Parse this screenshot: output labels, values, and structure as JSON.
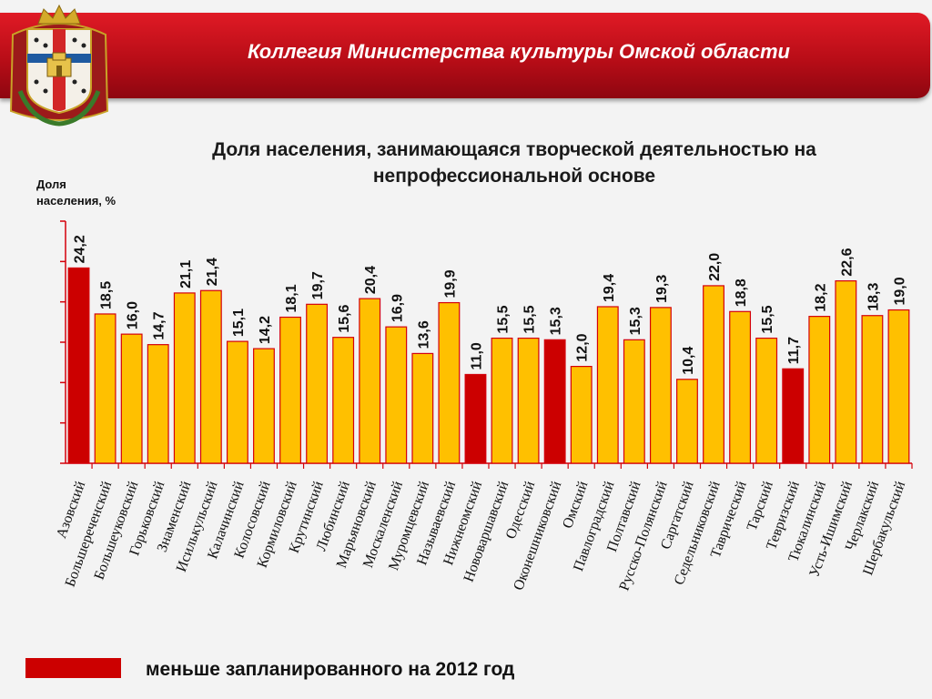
{
  "header": {
    "title": "Коллегия Министерства культуры Омской области"
  },
  "emblem": {
    "icon": "omsk-region-coat-of-arms-icon"
  },
  "colors": {
    "header_red": "#c8101b",
    "bar_normal": "#ffc000",
    "bar_normal_border": "#d4000a",
    "bar_below_plan": "#cc0000",
    "axis": "#d4000a"
  },
  "chart_data": {
    "type": "bar",
    "title": "Доля населения, занимающаяся творческой деятельностью на непрофессиональной основе",
    "title_lines": [
      "Доля населения, занимающаяся творческой деятельностью на",
      "непрофессиональной основе"
    ],
    "ylabel": "Доля населения, %",
    "ylabel_lines": [
      "Доля",
      "населения, %"
    ],
    "xlabel": "",
    "ylim": [
      0,
      30
    ],
    "y_tick_step": 5,
    "grid": false,
    "categories": [
      "Азовский",
      "Большереченский",
      "Большеуковский",
      "Горьковский",
      "Знаменский",
      "Исилькульский",
      "Калачинский",
      "Колосовский",
      "Кормиловский",
      "Крутинский",
      "Любинский",
      "Марьяновский",
      "Москаленский",
      "Муромцевский",
      "Называевский",
      "Нижнеомский",
      "Нововаршавский",
      "Одесский",
      "Оконешниковский",
      "Омский",
      "Павлоградский",
      "Полтавский",
      "Русско-Полянский",
      "Саргатский",
      "Седельниковский",
      "Таврический",
      "Тарский",
      "Тевризский",
      "Тюкалинский",
      "Усть-Ишимский",
      "Черлакский",
      "Шербакульский"
    ],
    "values": [
      24.2,
      18.5,
      16.0,
      14.7,
      21.1,
      21.4,
      15.1,
      14.2,
      18.1,
      19.7,
      15.6,
      20.4,
      16.9,
      13.6,
      19.9,
      11.0,
      15.5,
      15.5,
      15.3,
      12.0,
      19.4,
      15.3,
      19.3,
      10.4,
      22.0,
      18.8,
      15.5,
      11.7,
      18.2,
      22.6,
      18.3,
      19.0
    ],
    "value_labels": [
      "24,2",
      "18,5",
      "16,0",
      "14,7",
      "21,1",
      "21,4",
      "15,1",
      "14,2",
      "18,1",
      "19,7",
      "15,6",
      "20,4",
      "16,9",
      "13,6",
      "19,9",
      "11,0",
      "15,5",
      "15,5",
      "15,3",
      "12,0",
      "19,4",
      "15,3",
      "19,3",
      "10,4",
      "22,0",
      "18,8",
      "15,5",
      "11,7",
      "18,2",
      "22,6",
      "18,3",
      "19,0"
    ],
    "below_plan": [
      true,
      false,
      false,
      false,
      false,
      false,
      false,
      false,
      false,
      false,
      false,
      false,
      false,
      false,
      false,
      true,
      false,
      false,
      true,
      false,
      false,
      false,
      false,
      false,
      false,
      false,
      false,
      true,
      false,
      false,
      false,
      false
    ],
    "legend": [
      {
        "label": "меньше запланированного на 2012 год",
        "color": "#cc0000"
      }
    ],
    "legend_position": "bottom-left"
  }
}
